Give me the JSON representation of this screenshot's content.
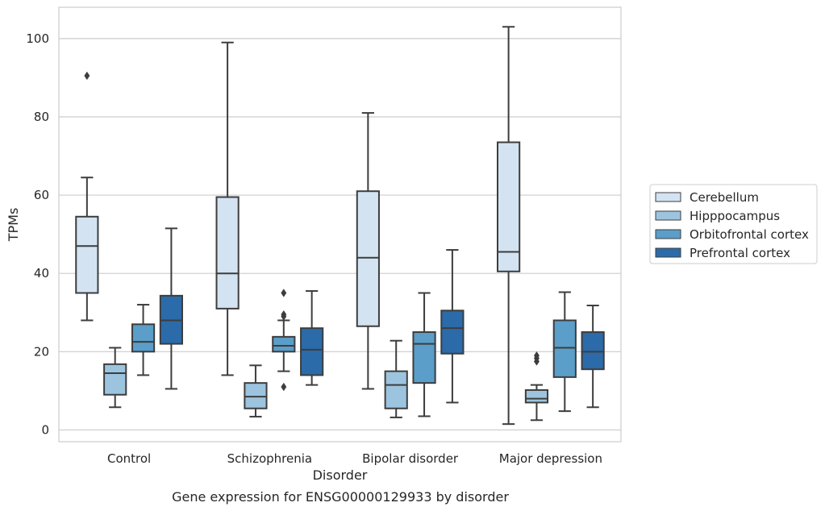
{
  "chart_data": {
    "type": "box",
    "caption": "Gene expression for ENSG00000129933 by disorder",
    "xlabel": "Disorder",
    "ylabel": "TPMs",
    "ylim": [
      -3,
      108
    ],
    "yticks": [
      0,
      20,
      40,
      60,
      80,
      100
    ],
    "grid": true,
    "legend_position": "right",
    "categories": [
      "Control",
      "Schizophrenia",
      "Bipolar disorder",
      "Major depression"
    ],
    "series": [
      {
        "name": "Cerebellum",
        "color": "#d3e3f2",
        "boxes": [
          {
            "whislo": 28,
            "q1": 35,
            "med": 47,
            "q3": 54.5,
            "whishi": 64.5,
            "fliers": [
              90.5
            ]
          },
          {
            "whislo": 14,
            "q1": 31,
            "med": 40,
            "q3": 59.5,
            "whishi": 99,
            "fliers": []
          },
          {
            "whislo": 10.5,
            "q1": 26.5,
            "med": 44,
            "q3": 61,
            "whishi": 81,
            "fliers": []
          },
          {
            "whislo": 1.5,
            "q1": 40.5,
            "med": 45.5,
            "q3": 73.5,
            "whishi": 103,
            "fliers": []
          }
        ]
      },
      {
        "name": "Hipppocampus",
        "color": "#9dc4df",
        "boxes": [
          {
            "whislo": 5.8,
            "q1": 9,
            "med": 14.5,
            "q3": 16.8,
            "whishi": 21,
            "fliers": []
          },
          {
            "whislo": 3.4,
            "q1": 5.5,
            "med": 8.5,
            "q3": 12,
            "whishi": 16.5,
            "fliers": []
          },
          {
            "whislo": 3.2,
            "q1": 5.5,
            "med": 11.5,
            "q3": 15,
            "whishi": 22.8,
            "fliers": []
          },
          {
            "whislo": 2.5,
            "q1": 7,
            "med": 8,
            "q3": 10.2,
            "whishi": 11.5,
            "fliers": [
              17.5,
              18.3,
              19
            ]
          }
        ]
      },
      {
        "name": "Orbitofrontal cortex",
        "color": "#5a9ec9",
        "boxes": [
          {
            "whislo": 14,
            "q1": 20,
            "med": 22.5,
            "q3": 27,
            "whishi": 32,
            "fliers": []
          },
          {
            "whislo": 15,
            "q1": 20,
            "med": 21.5,
            "q3": 23.8,
            "whishi": 28,
            "fliers": [
              11,
              29,
              29.5,
              35
            ]
          },
          {
            "whislo": 3.5,
            "q1": 12,
            "med": 22,
            "q3": 25,
            "whishi": 35,
            "fliers": []
          },
          {
            "whislo": 4.8,
            "q1": 13.5,
            "med": 21,
            "q3": 28,
            "whishi": 35.2,
            "fliers": []
          }
        ]
      },
      {
        "name": "Prefrontal cortex",
        "color": "#2b6ba9",
        "boxes": [
          {
            "whislo": 10.5,
            "q1": 22,
            "med": 28,
            "q3": 34.3,
            "whishi": 51.5,
            "fliers": []
          },
          {
            "whislo": 11.5,
            "q1": 14,
            "med": 20.5,
            "q3": 26,
            "whishi": 35.5,
            "fliers": []
          },
          {
            "whislo": 7,
            "q1": 19.5,
            "med": 26,
            "q3": 30.5,
            "whishi": 46,
            "fliers": []
          },
          {
            "whislo": 5.8,
            "q1": 15.5,
            "med": 20,
            "q3": 25,
            "whishi": 31.8,
            "fliers": []
          }
        ]
      }
    ]
  }
}
